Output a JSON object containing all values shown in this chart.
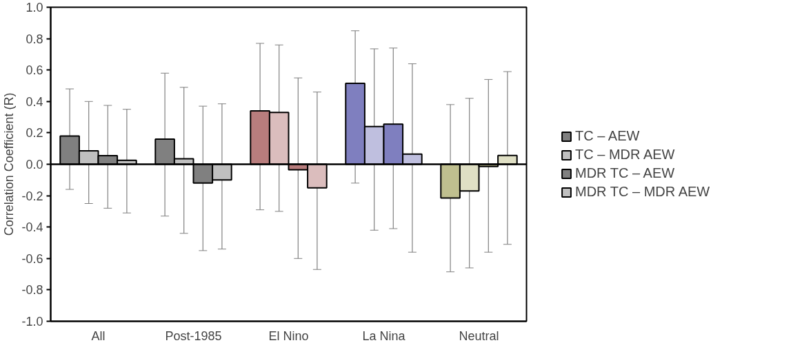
{
  "chart_data": {
    "type": "bar",
    "ylabel": "Correlation Coefficient (R)",
    "categories": [
      "All",
      "Post-1985",
      "El Nino",
      "La Nina",
      "Neutral"
    ],
    "series": [
      {
        "name": "TC – AEW",
        "color": "#808080",
        "colors": [
          "#808080",
          "#808080",
          "#b87d7d",
          "#7f7fbf",
          "#bfbf8f"
        ],
        "values": [
          0.18,
          0.16,
          0.34,
          0.515,
          -0.215
        ],
        "errors": [
          [
            -0.16,
            0.48
          ],
          [
            -0.33,
            0.58
          ],
          [
            -0.29,
            0.77
          ],
          [
            -0.12,
            0.85
          ],
          [
            -0.685,
            0.38
          ]
        ]
      },
      {
        "name": "TC – MDR AEW",
        "color": "#c0c0c0",
        "colors": [
          "#c0c0c0",
          "#c0c0c0",
          "#dbbdbd",
          "#bfbfdf",
          "#dfdfc4"
        ],
        "values": [
          0.085,
          0.035,
          0.33,
          0.24,
          -0.17
        ],
        "errors": [
          [
            -0.25,
            0.4
          ],
          [
            -0.44,
            0.49
          ],
          [
            -0.3,
            0.76
          ],
          [
            -0.42,
            0.735
          ],
          [
            -0.66,
            0.42
          ]
        ]
      },
      {
        "name": "MDR TC – AEW",
        "color": "#808080",
        "colors": [
          "#808080",
          "#808080",
          "#b87d7d",
          "#7f7fbf",
          "#bfbf8f"
        ],
        "values": [
          0.055,
          -0.12,
          -0.035,
          0.255,
          -0.014
        ],
        "errors": [
          [
            -0.28,
            0.375
          ],
          [
            -0.55,
            0.37
          ],
          [
            -0.6,
            0.55
          ],
          [
            -0.41,
            0.74
          ],
          [
            -0.56,
            0.54
          ]
        ]
      },
      {
        "name": "MDR TC – MDR AEW",
        "color": "#c0c0c0",
        "colors": [
          "#c0c0c0",
          "#c0c0c0",
          "#dbbdbd",
          "#bfbfdf",
          "#dfdfc4"
        ],
        "values": [
          0.025,
          -0.1,
          -0.15,
          0.065,
          0.056
        ],
        "errors": [
          [
            -0.31,
            0.35
          ],
          [
            -0.54,
            0.385
          ],
          [
            -0.67,
            0.46
          ],
          [
            -0.56,
            0.64
          ],
          [
            -0.51,
            0.59
          ]
        ]
      }
    ],
    "ylim": [
      -1.0,
      1.0
    ],
    "yticks": [
      {
        "value": -1.0,
        "label": "-1.0"
      },
      {
        "value": -0.8,
        "label": "-0.8"
      },
      {
        "value": -0.6,
        "label": "-0.6"
      },
      {
        "value": -0.4,
        "label": "-0.4"
      },
      {
        "value": -0.2,
        "label": "-0.2"
      },
      {
        "value": 0,
        "label": "0.0"
      },
      {
        "value": 0.2,
        "label": "0.2"
      },
      {
        "value": 0.4,
        "label": "0.4"
      },
      {
        "value": 0.6,
        "label": "0.6"
      },
      {
        "value": 0.8,
        "label": "0.8"
      },
      {
        "value": 1.0,
        "label": "1.0"
      }
    ],
    "ref_lines": [
      {
        "axis": "y",
        "value": 0
      }
    ],
    "grid": false,
    "legend": "right"
  }
}
